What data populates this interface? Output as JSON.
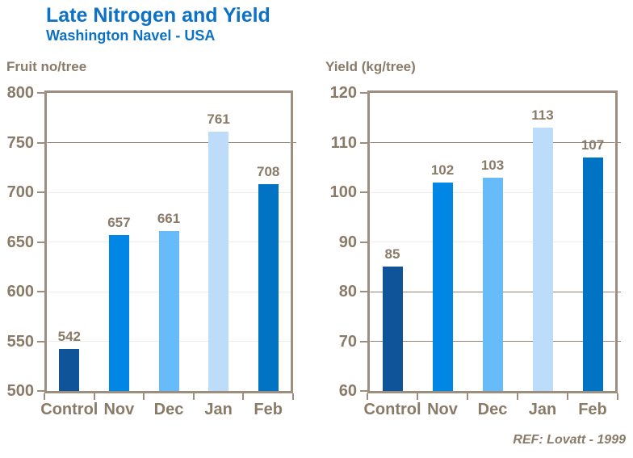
{
  "page": {
    "title": "Late Nitrogen and Yield",
    "subtitle": "Washington Navel - USA",
    "reference": "REF: Lovatt - 1999"
  },
  "colors": {
    "title_blue": "#0d72c6",
    "axis_text_brown": "#8a7a68",
    "frame_tan": "#9c8f80",
    "grid_dark": "#8f8274",
    "grid_light": "#ececec"
  },
  "chart_data": [
    {
      "type": "bar",
      "axis_title": "Fruit no/tree",
      "ylabel": "Fruit no/tree",
      "xlabel": "",
      "categories": [
        "Control",
        "Nov",
        "Dec",
        "Jan",
        "Feb"
      ],
      "values": [
        542,
        657,
        661,
        761,
        708
      ],
      "bar_colors": [
        "#0f5499",
        "#0087e6",
        "#67bbf9",
        "#bcdcf9",
        "#0073c4"
      ],
      "ylim": [
        500,
        800
      ],
      "yticks": [
        500,
        550,
        600,
        650,
        700,
        750,
        800
      ],
      "gridlines": [
        {
          "value": 750,
          "shade": "dark"
        },
        {
          "value": 700,
          "shade": "light"
        },
        {
          "value": 650,
          "shade": "light"
        },
        {
          "value": 600,
          "shade": "light"
        },
        {
          "value": 550,
          "shade": "light"
        }
      ],
      "legend": "none",
      "grid": true
    },
    {
      "type": "bar",
      "axis_title": "Yield (kg/tree)",
      "ylabel": "Yield (kg/tree)",
      "xlabel": "",
      "categories": [
        "Control",
        "Nov",
        "Dec",
        "Jan",
        "Feb"
      ],
      "values": [
        85,
        102,
        103,
        113,
        107
      ],
      "bar_colors": [
        "#0f5499",
        "#0087e6",
        "#67bbf9",
        "#bcdcf9",
        "#0073c4"
      ],
      "ylim": [
        60,
        120
      ],
      "yticks": [
        60,
        70,
        80,
        90,
        100,
        110,
        120
      ],
      "gridlines": [
        {
          "value": 110,
          "shade": "dark"
        },
        {
          "value": 100,
          "shade": "light"
        },
        {
          "value": 90,
          "shade": "light"
        },
        {
          "value": 80,
          "shade": "dark"
        },
        {
          "value": 70,
          "shade": "dark"
        }
      ],
      "legend": "none",
      "grid": true
    }
  ]
}
